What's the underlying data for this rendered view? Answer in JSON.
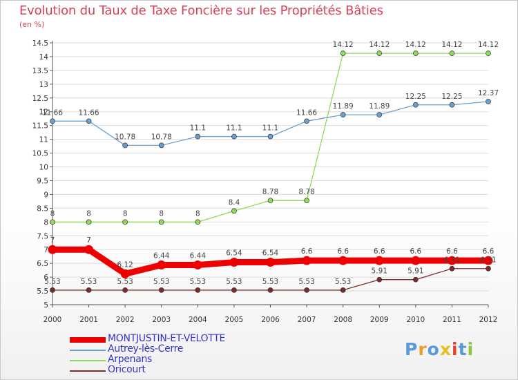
{
  "header": {
    "title": "Evolution du Taux de Taxe Foncière sur les Propriétés Bâties",
    "subtitle": "(en %)"
  },
  "colors": {
    "title": "#d8405a",
    "grid": "#dcdcdc",
    "axis": "#555555"
  },
  "chart_data": {
    "type": "line",
    "title": "Evolution du Taux de Taxe Foncière sur les Propriétés Bâties",
    "ylabel": "(en %)",
    "xlabel": "",
    "x": [
      "2000",
      "2001",
      "2002",
      "2003",
      "2004",
      "2005",
      "2006",
      "2007",
      "2008",
      "2009",
      "2010",
      "2011",
      "2012"
    ],
    "ylim": [
      5,
      14.5
    ],
    "yticks": [
      "5",
      "5.5",
      "6",
      "6.5",
      "7",
      "7.5",
      "8",
      "8.5",
      "9",
      "9.5",
      "10",
      "10.5",
      "11",
      "11.5",
      "12",
      "12.5",
      "13",
      "13.5",
      "14",
      "14.5"
    ],
    "grid": "horizontal",
    "legend_position": "bottom-left",
    "series": [
      {
        "name": "Oricourt",
        "color": "#7a2c2c",
        "values": [
          5.53,
          5.53,
          5.53,
          5.53,
          5.53,
          5.53,
          5.53,
          5.53,
          5.53,
          5.91,
          5.91,
          6.31,
          6.31
        ],
        "labels": [
          "5.53",
          "5.53",
          "5.53",
          "5.53",
          "5.53",
          "5.53",
          "5.53",
          "5.53",
          "5.53",
          "5.91",
          "5.91",
          "6.31",
          "6.31"
        ]
      },
      {
        "name": "Arpenans",
        "color": "#8edc58",
        "values": [
          8,
          8,
          8,
          8,
          8,
          8.4,
          8.78,
          8.78,
          14.12,
          14.12,
          14.12,
          14.12,
          14.12
        ],
        "labels": [
          "8",
          "8",
          "8",
          "8",
          "8",
          "8.4",
          "8.78",
          "8.78",
          "14.12",
          "14.12",
          "14.12",
          "14.12",
          "14.12"
        ]
      },
      {
        "name": "Autrey-lès-Cerre",
        "color": "#6aa0d0",
        "values": [
          11.66,
          11.66,
          10.78,
          10.78,
          11.1,
          11.1,
          11.1,
          11.66,
          11.89,
          11.89,
          12.25,
          12.25,
          12.37
        ],
        "labels": [
          "11.66",
          "11.66",
          "10.78",
          "10.78",
          "11.1",
          "11.1",
          "11.1",
          "11.66",
          "11.89",
          "11.89",
          "12.25",
          "12.25",
          "12.37"
        ]
      },
      {
        "name": "MONTJUSTIN-ET-VELOTTE",
        "color": "#ee0000",
        "values": [
          7,
          7,
          6.12,
          6.44,
          6.44,
          6.54,
          6.54,
          6.6,
          6.6,
          6.6,
          6.6,
          6.6,
          6.6
        ],
        "labels": [
          "7",
          "7",
          "6.12",
          "6.44",
          "6.44",
          "6.54",
          "6.54",
          "6.6",
          "6.6",
          "6.6",
          "6.6",
          "6.6",
          "6.6"
        ]
      }
    ]
  },
  "legend": {
    "items": [
      {
        "label": "MONTJUSTIN-ET-VELOTTE",
        "color": "#ee0000",
        "text_color": "#3333cc"
      },
      {
        "label": "Autrey-lès-Cerre",
        "color": "#6aa0d0",
        "text_color": "#3333cc"
      },
      {
        "label": "Arpenans",
        "color": "#8edc58",
        "text_color": "#3333cc"
      },
      {
        "label": "Oricourt",
        "color": "#7a2c2c",
        "text_color": "#3333cc"
      }
    ]
  },
  "logo": {
    "text": "Proxiti",
    "letters": [
      "P",
      "r",
      "o",
      "x",
      "i",
      "t",
      "i"
    ],
    "colors": [
      "#5a9ad8",
      "#e8a030",
      "#5a9ad8",
      "#e8c020",
      "#e84030",
      "#5a9ad8",
      "#8cc63f"
    ]
  }
}
